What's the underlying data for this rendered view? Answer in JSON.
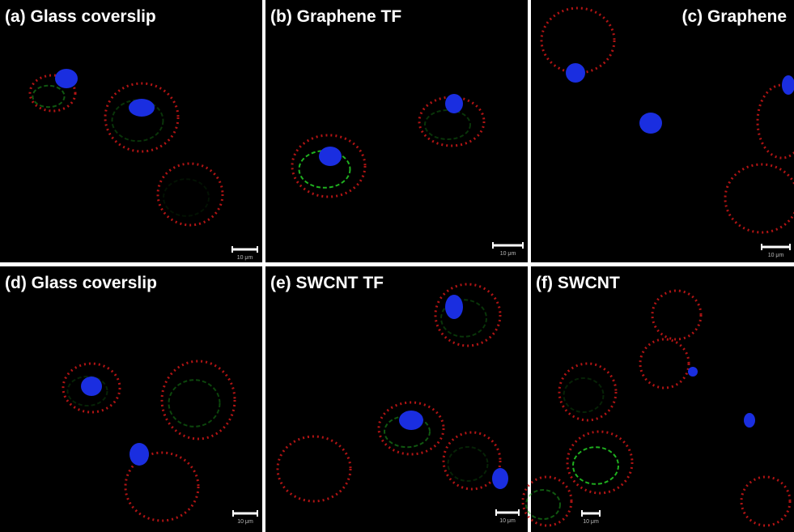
{
  "panels": [
    {
      "label": "(a) Glass coverslip",
      "scale_bar": "10 μm"
    },
    {
      "label": "(b) Graphene TF",
      "scale_bar": "10 μm"
    },
    {
      "label": "(c) Graphene",
      "scale_bar": "10 μm"
    },
    {
      "label": "(d) Glass coverslip",
      "scale_bar": "10 μm"
    },
    {
      "label": "(e) SWCNT TF",
      "scale_bar": "10 μm"
    },
    {
      "label": "(f) SWCNT",
      "scale_bar": "10 μm"
    }
  ]
}
